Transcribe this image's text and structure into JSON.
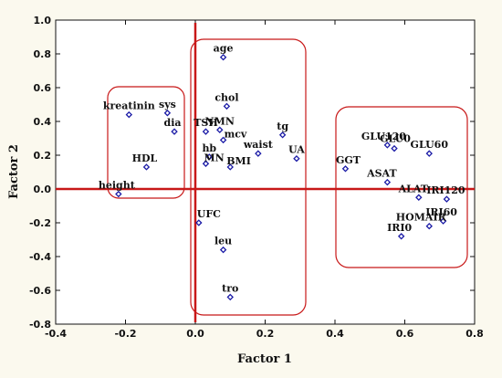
{
  "chart_data": {
    "type": "scatter",
    "xlabel": "Factor  1",
    "ylabel": "Factor  2",
    "xlim": [
      -0.4,
      0.8
    ],
    "ylim": [
      -0.8,
      1.0
    ],
    "xticks": [
      -0.4,
      -0.2,
      0.0,
      0.2,
      0.4,
      0.6,
      0.8
    ],
    "yticks": [
      -0.8,
      -0.6,
      -0.4,
      -0.2,
      0.0,
      0.2,
      0.4,
      0.6,
      0.8,
      1.0
    ],
    "xtick_labels": [
      "-0.4",
      "-0.2",
      "0.0",
      "0.2",
      "0.4",
      "0.6",
      "0.8"
    ],
    "ytick_labels": [
      "-0.8",
      "-0.6",
      "-0.4",
      "-0.2",
      "0.0",
      "0.2",
      "0.4",
      "0.6",
      "0.8",
      "1.0"
    ],
    "grid": false,
    "points": [
      {
        "label": "age",
        "x": 0.08,
        "y": 0.78
      },
      {
        "label": "chol",
        "x": 0.09,
        "y": 0.49
      },
      {
        "label": "kreatinin",
        "x": -0.19,
        "y": 0.44
      },
      {
        "label": "sys",
        "x": -0.08,
        "y": 0.45
      },
      {
        "label": "dia",
        "x": -0.06,
        "y": 0.34
      },
      {
        "label": "TSH",
        "x": 0.03,
        "y": 0.34
      },
      {
        "label": "NMN",
        "x": 0.07,
        "y": 0.35
      },
      {
        "label": "mcv",
        "x": 0.08,
        "y": 0.29
      },
      {
        "label": "tg",
        "x": 0.25,
        "y": 0.32
      },
      {
        "label": "hb",
        "x": 0.04,
        "y": 0.19
      },
      {
        "label": "MN",
        "x": 0.03,
        "y": 0.15
      },
      {
        "label": "BMI",
        "x": 0.1,
        "y": 0.13
      },
      {
        "label": "waist",
        "x": 0.18,
        "y": 0.21
      },
      {
        "label": "UA",
        "x": 0.29,
        "y": 0.18
      },
      {
        "label": "HDL",
        "x": -0.14,
        "y": 0.13
      },
      {
        "label": "height",
        "x": -0.22,
        "y": -0.03
      },
      {
        "label": "GLU120",
        "x": 0.55,
        "y": 0.26
      },
      {
        "label": "GLU0",
        "x": 0.57,
        "y": 0.24
      },
      {
        "label": "GLU60",
        "x": 0.67,
        "y": 0.21
      },
      {
        "label": "GGT",
        "x": 0.43,
        "y": 0.12
      },
      {
        "label": "ASAT",
        "x": 0.55,
        "y": 0.04
      },
      {
        "label": "ALAT",
        "x": 0.64,
        "y": -0.05
      },
      {
        "label": "IRI120",
        "x": 0.72,
        "y": -0.06
      },
      {
        "label": "IRI60",
        "x": 0.71,
        "y": -0.19
      },
      {
        "label": "HOMAIR",
        "x": 0.67,
        "y": -0.22
      },
      {
        "label": "IRI0",
        "x": 0.59,
        "y": -0.28
      },
      {
        "label": "UFC",
        "x": 0.01,
        "y": -0.2
      },
      {
        "label": "leu",
        "x": 0.08,
        "y": -0.36
      },
      {
        "label": "tro",
        "x": 0.1,
        "y": -0.64
      }
    ],
    "colors": {
      "point": "#1a1aa6",
      "highlight": "#c81818",
      "background": "#fbf9ee",
      "plot_background": "#ffffff"
    }
  }
}
